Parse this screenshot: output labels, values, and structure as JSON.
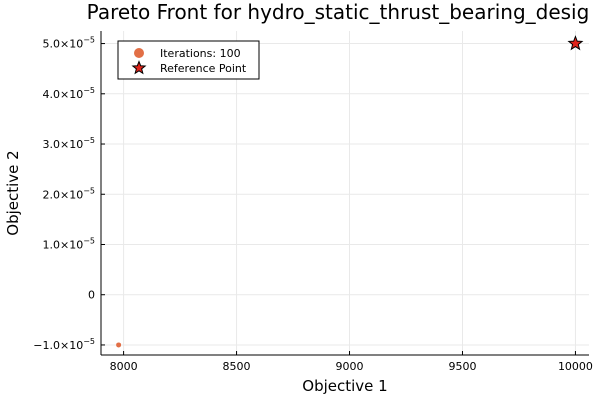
{
  "chart_data": {
    "type": "scatter",
    "title": "Pareto Front for hydro_static_thrust_bearing_desig",
    "xlabel": "Objective 1",
    "ylabel": "Objective 2",
    "xlim": [
      7900,
      10060
    ],
    "ylim": [
      -1.2e-05,
      5.25e-05
    ],
    "grid": true,
    "legend_position": "top-left",
    "xticks": [
      {
        "value": 8000,
        "label": "8000"
      },
      {
        "value": 8500,
        "label": "8500"
      },
      {
        "value": 9000,
        "label": "9000"
      },
      {
        "value": 9500,
        "label": "9500"
      },
      {
        "value": 10000,
        "label": "10000"
      }
    ],
    "yticks": [
      {
        "value": -1e-05,
        "label": "−1.0×10",
        "exp": "−5"
      },
      {
        "value": 0,
        "label": "0",
        "exp": ""
      },
      {
        "value": 1e-05,
        "label": "1.0×10",
        "exp": "−5"
      },
      {
        "value": 2e-05,
        "label": "2.0×10",
        "exp": "−5"
      },
      {
        "value": 3e-05,
        "label": "3.0×10",
        "exp": "−5"
      },
      {
        "value": 4e-05,
        "label": "4.0×10",
        "exp": "−5"
      },
      {
        "value": 5e-05,
        "label": "5.0×10",
        "exp": "−5"
      }
    ],
    "series": [
      {
        "name": "Iterations: 100",
        "marker": "circle",
        "color": "#e26f46",
        "points": [
          {
            "x": 7978,
            "y": -1e-05
          }
        ]
      },
      {
        "name": "Reference Point",
        "marker": "star",
        "color": "#e0231a",
        "points": [
          {
            "x": 10000,
            "y": 5e-05
          }
        ]
      }
    ]
  }
}
